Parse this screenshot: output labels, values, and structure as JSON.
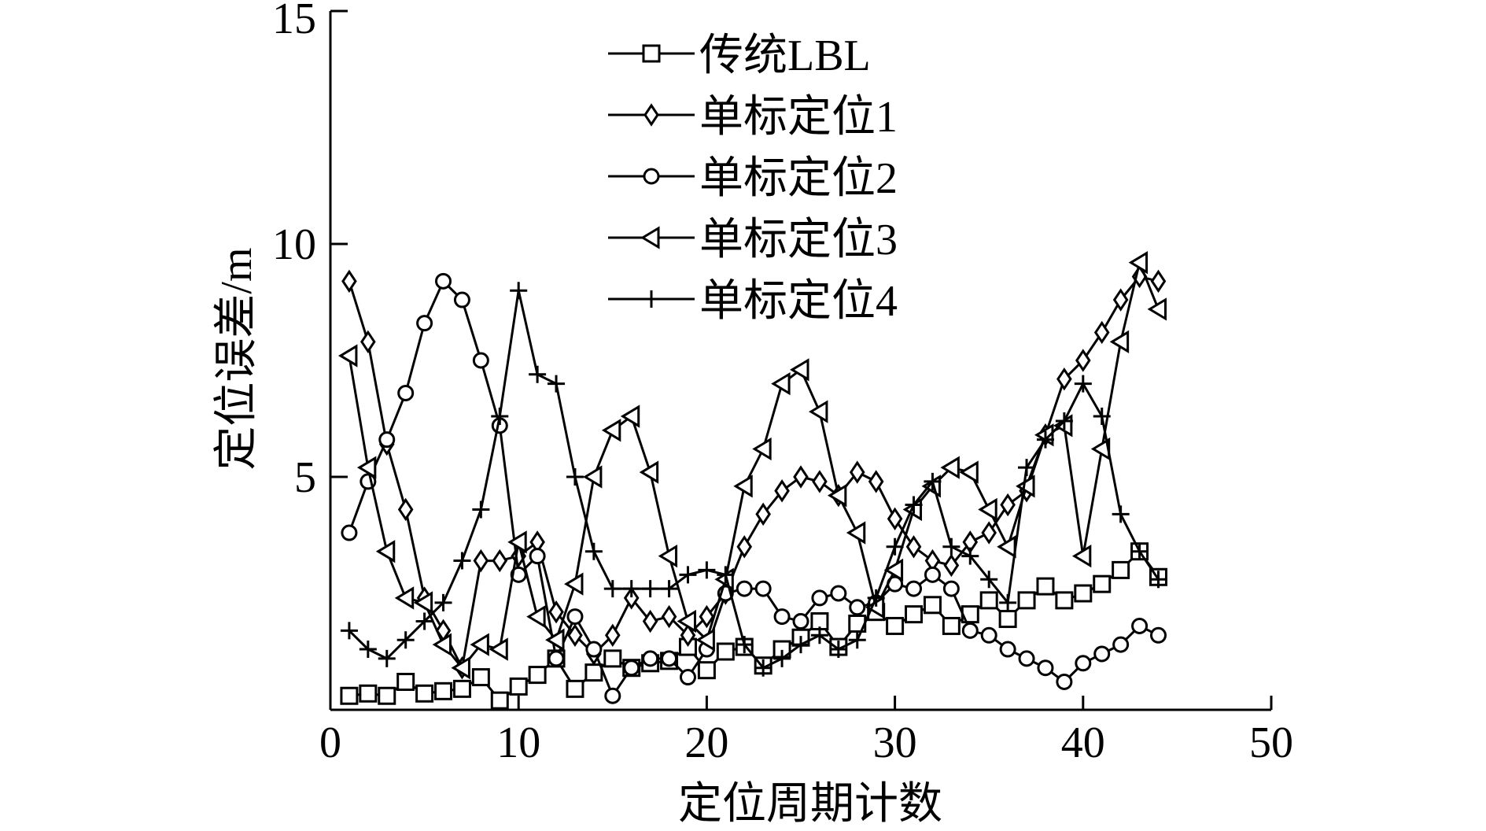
{
  "colors": {
    "ink": "#000000",
    "background": "#ffffff"
  },
  "chart_data": {
    "type": "line",
    "xlabel": "定位周期计数",
    "ylabel": "定位误差/m",
    "xlim": [
      0,
      50
    ],
    "ylim": [
      0,
      15
    ],
    "xticks": [
      0,
      10,
      20,
      30,
      40,
      50
    ],
    "yticks": [
      5,
      10,
      15
    ],
    "grid": false,
    "legend": "top-center",
    "x": [
      1,
      2,
      3,
      4,
      5,
      6,
      7,
      8,
      9,
      10,
      11,
      12,
      13,
      14,
      15,
      16,
      17,
      18,
      19,
      20,
      21,
      22,
      23,
      24,
      25,
      26,
      27,
      28,
      29,
      30,
      31,
      32,
      33,
      34,
      35,
      36,
      37,
      38,
      39,
      40,
      41,
      42,
      43,
      44
    ],
    "series": [
      {
        "name": "传统LBL",
        "marker": "square",
        "values": [
          0.3,
          0.35,
          0.3,
          0.6,
          0.35,
          0.4,
          0.45,
          0.7,
          0.2,
          0.5,
          0.75,
          1.1,
          0.45,
          0.8,
          1.1,
          0.9,
          1.0,
          1.05,
          1.35,
          0.85,
          1.25,
          1.35,
          0.95,
          1.3,
          1.55,
          1.9,
          1.35,
          1.85,
          2.1,
          1.8,
          2.05,
          2.25,
          1.8,
          2.05,
          2.35,
          1.95,
          2.35,
          2.65,
          2.35,
          2.5,
          2.7,
          3.0,
          3.4,
          2.85
        ]
      },
      {
        "name": "单标定位1",
        "marker": "diamond",
        "values": [
          9.2,
          7.9,
          5.7,
          4.3,
          2.4,
          1.7,
          0.9,
          3.2,
          3.2,
          3.3,
          3.6,
          2.1,
          1.6,
          1.2,
          1.6,
          2.4,
          1.9,
          2.0,
          1.6,
          2.0,
          2.5,
          3.5,
          4.2,
          4.7,
          5.0,
          4.9,
          4.6,
          5.1,
          4.9,
          4.1,
          3.5,
          3.2,
          3.1,
          3.6,
          3.8,
          4.4,
          4.7,
          5.9,
          7.1,
          7.5,
          8.1,
          8.8,
          9.3,
          9.2
        ]
      },
      {
        "name": "单标定位2",
        "marker": "circle",
        "values": [
          3.8,
          4.9,
          5.8,
          6.8,
          8.3,
          9.2,
          8.8,
          7.5,
          6.1,
          2.9,
          3.3,
          1.1,
          2.0,
          1.3,
          0.3,
          0.9,
          1.1,
          1.1,
          0.7,
          1.3,
          2.5,
          2.6,
          2.6,
          2.0,
          1.9,
          2.4,
          2.5,
          2.2,
          2.3,
          2.7,
          2.6,
          2.9,
          2.6,
          1.7,
          1.6,
          1.3,
          1.1,
          0.9,
          0.6,
          1.0,
          1.2,
          1.4,
          1.8,
          1.6
        ]
      },
      {
        "name": "单标定位3",
        "marker": "triangle-left",
        "values": [
          7.6,
          5.2,
          3.4,
          2.4,
          2.3,
          1.4,
          0.9,
          1.4,
          1.3,
          3.6,
          2.0,
          1.5,
          2.7,
          5.0,
          6.0,
          6.3,
          5.1,
          3.3,
          1.9,
          1.5,
          2.8,
          4.8,
          5.6,
          7.0,
          7.3,
          6.4,
          4.6,
          3.8,
          2.2,
          3.0,
          4.3,
          4.8,
          5.2,
          5.1,
          4.3,
          3.5,
          4.8,
          5.9,
          6.1,
          3.3,
          5.6,
          7.9,
          9.6,
          8.6
        ]
      },
      {
        "name": "单标定位4",
        "marker": "plus",
        "values": [
          1.7,
          1.3,
          1.1,
          1.5,
          1.9,
          2.3,
          3.2,
          4.3,
          6.3,
          9.0,
          7.2,
          7.0,
          5.0,
          3.4,
          2.6,
          2.6,
          2.6,
          2.6,
          2.9,
          3.0,
          2.9,
          1.4,
          0.9,
          1.1,
          1.4,
          1.6,
          1.3,
          1.5,
          2.4,
          3.5,
          4.4,
          4.9,
          3.5,
          3.3,
          2.8,
          2.3,
          5.2,
          5.8,
          6.2,
          7.0,
          6.3,
          4.2,
          3.4,
          2.8
        ]
      }
    ]
  }
}
